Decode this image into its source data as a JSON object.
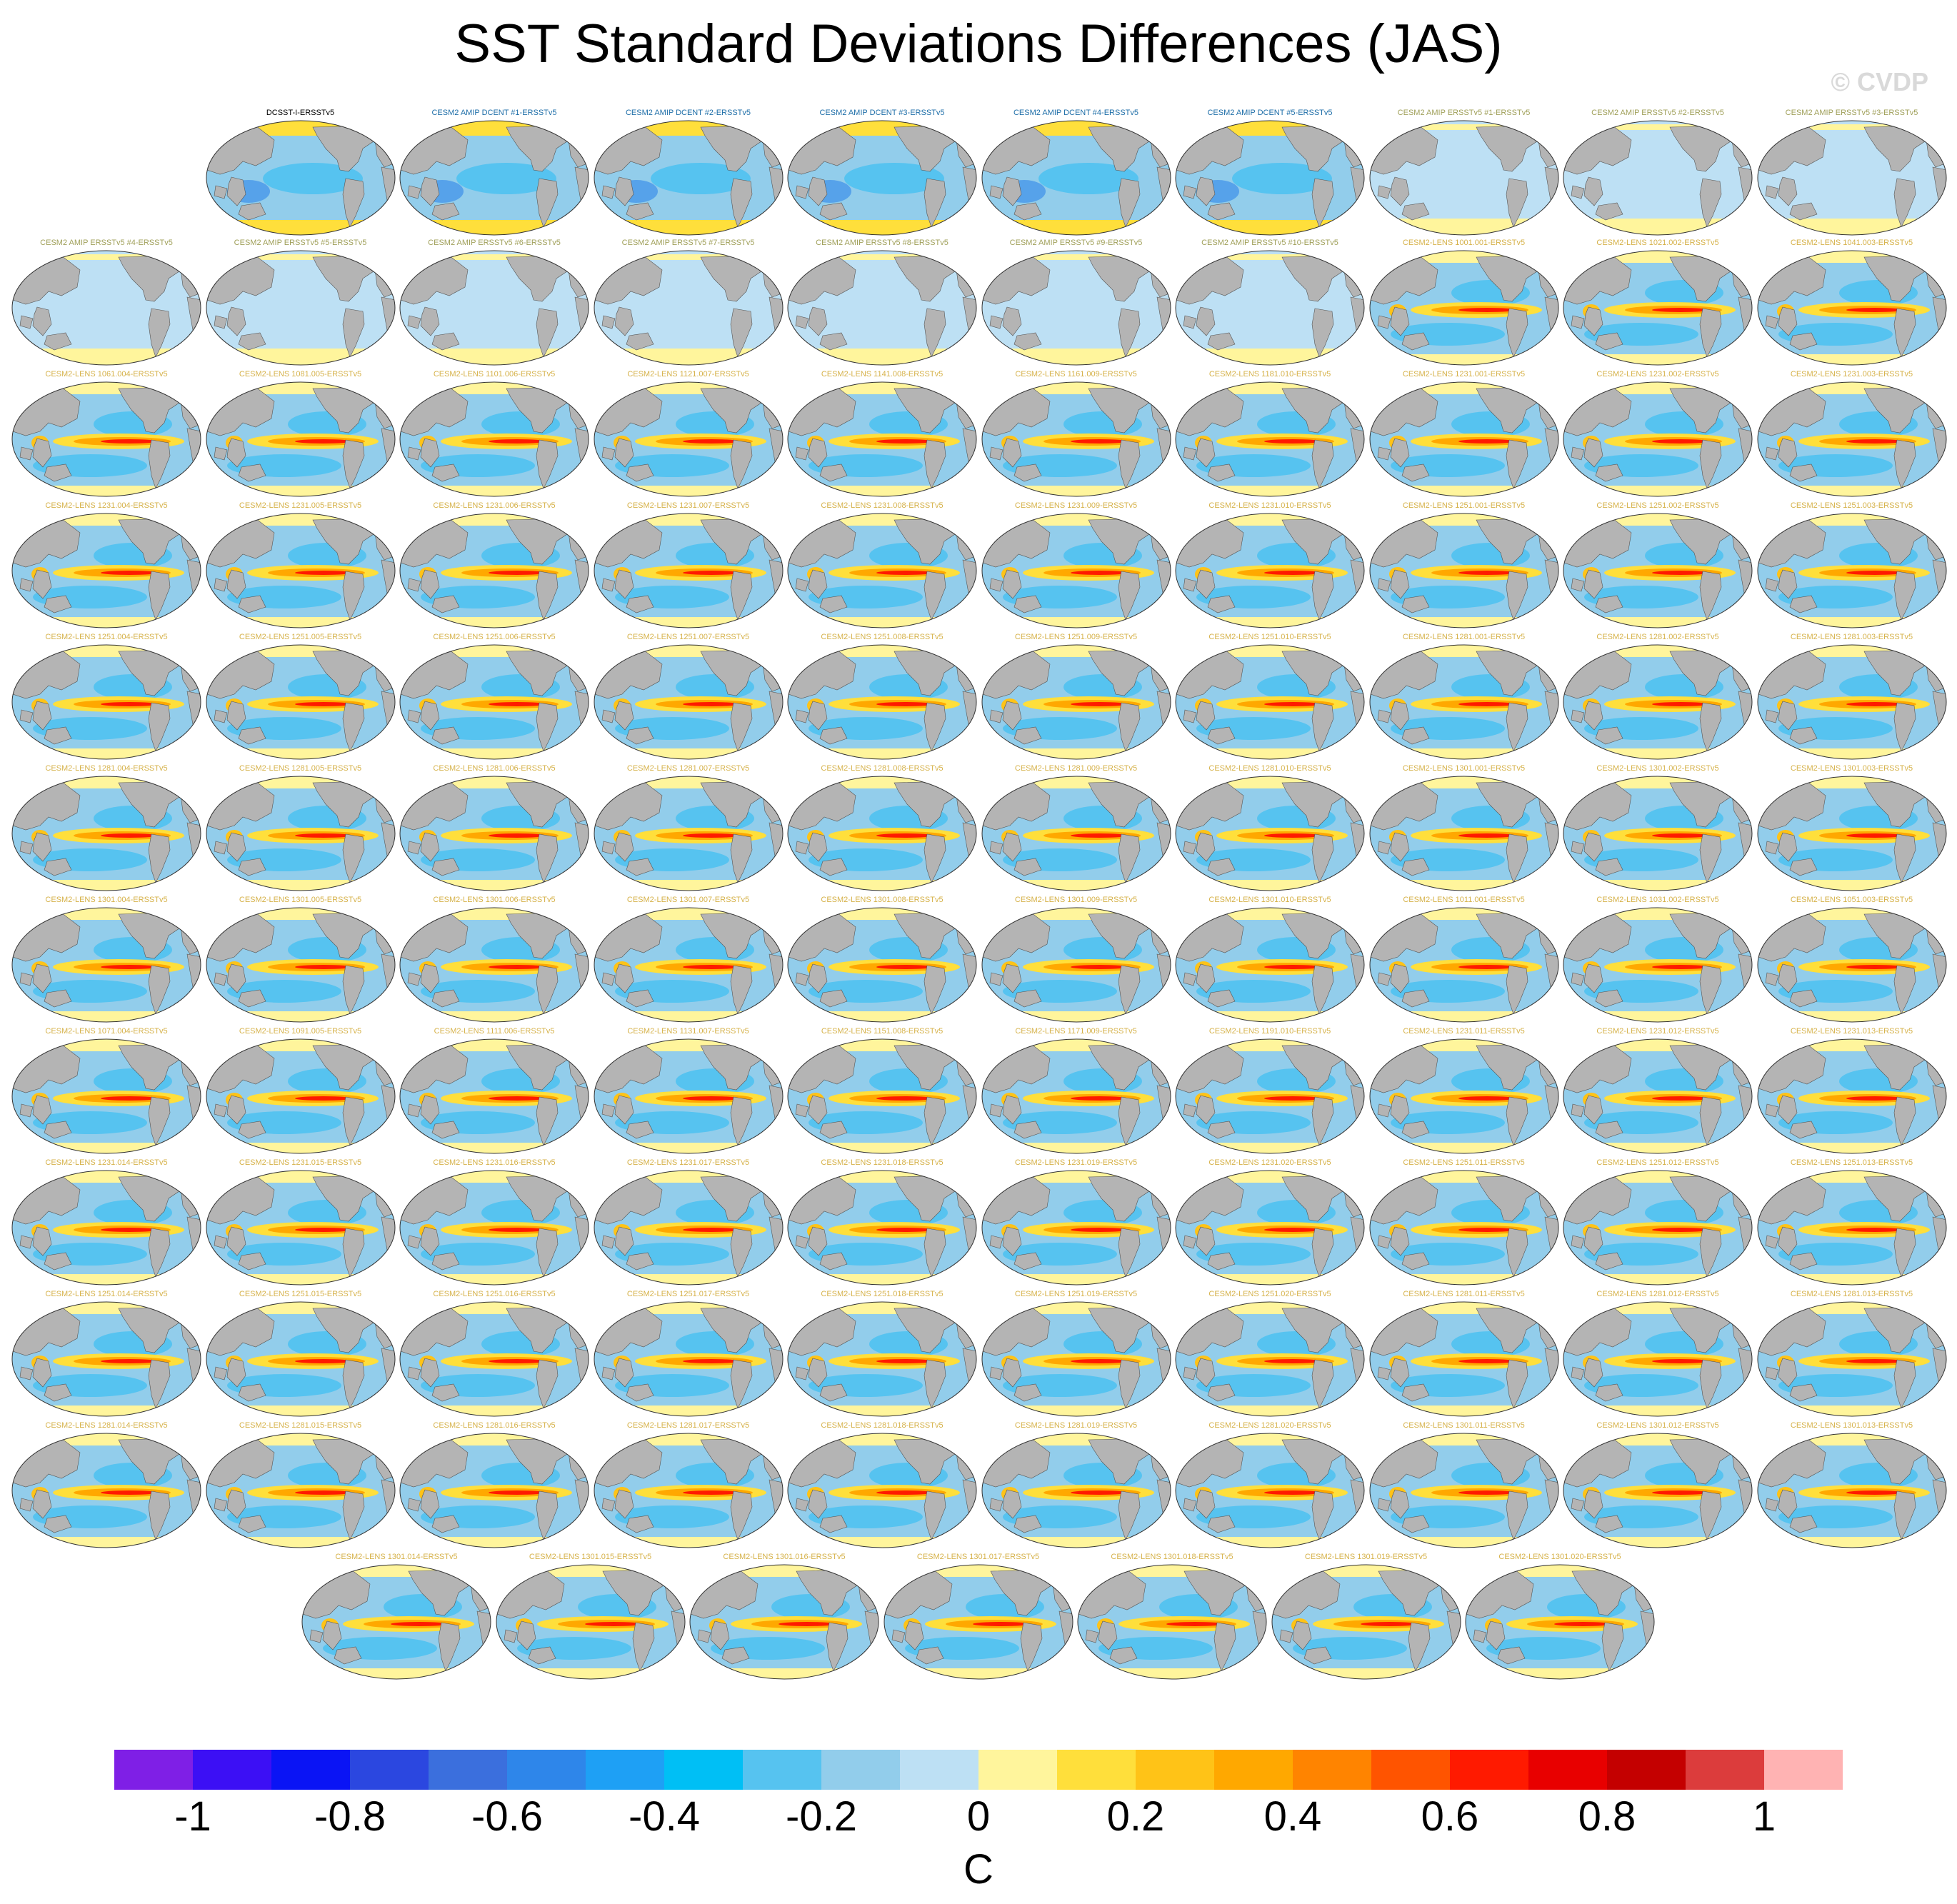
{
  "title": "SST Standard Deviations Differences (JAS)",
  "watermark": "© CVDP",
  "colors": {
    "land": "#b4b4b4",
    "title_black": "#000000",
    "title_blue": "#1e6ea8",
    "title_olive": "#a0a05a",
    "title_gold": "#d6b24a"
  },
  "panels": [
    {
      "label": "DCSST-I-ERSSTv5",
      "style": "dcent"
    },
    {
      "label": "CESM2 AMIP DCENT #1-ERSSTv5",
      "style": "dcent"
    },
    {
      "label": "CESM2 AMIP DCENT #2-ERSSTv5",
      "style": "dcent"
    },
    {
      "label": "CESM2 AMIP DCENT #3-ERSSTv5",
      "style": "dcent"
    },
    {
      "label": "CESM2 AMIP DCENT #4-ERSSTv5",
      "style": "dcent"
    },
    {
      "label": "CESM2 AMIP DCENT #5-ERSSTv5",
      "style": "dcent"
    },
    {
      "label": "CESM2 AMIP ERSSTv5 #1-ERSSTv5",
      "style": "amip"
    },
    {
      "label": "CESM2 AMIP ERSSTv5 #2-ERSSTv5",
      "style": "amip"
    },
    {
      "label": "CESM2 AMIP ERSSTv5 #3-ERSSTv5",
      "style": "amip"
    },
    {
      "label": "CESM2 AMIP ERSSTv5 #4-ERSSTv5",
      "style": "amip"
    },
    {
      "label": "CESM2 AMIP ERSSTv5 #5-ERSSTv5",
      "style": "amip"
    },
    {
      "label": "CESM2 AMIP ERSSTv5 #6-ERSSTv5",
      "style": "amip"
    },
    {
      "label": "CESM2 AMIP ERSSTv5 #7-ERSSTv5",
      "style": "amip"
    },
    {
      "label": "CESM2 AMIP ERSSTv5 #8-ERSSTv5",
      "style": "amip"
    },
    {
      "label": "CESM2 AMIP ERSSTv5 #9-ERSSTv5",
      "style": "amip"
    },
    {
      "label": "CESM2 AMIP ERSSTv5 #10-ERSSTv5",
      "style": "amip"
    },
    {
      "label": "CESM2-LENS 1001.001-ERSSTv5",
      "style": "lens"
    },
    {
      "label": "CESM2-LENS 1021.002-ERSSTv5",
      "style": "lens"
    },
    {
      "label": "CESM2-LENS 1041.003-ERSSTv5",
      "style": "lens"
    },
    {
      "label": "CESM2-LENS 1061.004-ERSSTv5",
      "style": "lens"
    },
    {
      "label": "CESM2-LENS 1081.005-ERSSTv5",
      "style": "lens"
    },
    {
      "label": "CESM2-LENS 1101.006-ERSSTv5",
      "style": "lens"
    },
    {
      "label": "CESM2-LENS 1121.007-ERSSTv5",
      "style": "lens"
    },
    {
      "label": "CESM2-LENS 1141.008-ERSSTv5",
      "style": "lens"
    },
    {
      "label": "CESM2-LENS 1161.009-ERSSTv5",
      "style": "lens"
    },
    {
      "label": "CESM2-LENS 1181.010-ERSSTv5",
      "style": "lens"
    },
    {
      "label": "CESM2-LENS 1231.001-ERSSTv5",
      "style": "lens"
    },
    {
      "label": "CESM2-LENS 1231.002-ERSSTv5",
      "style": "lens"
    },
    {
      "label": "CESM2-LENS 1231.003-ERSSTv5",
      "style": "lens"
    },
    {
      "label": "CESM2-LENS 1231.004-ERSSTv5",
      "style": "lens"
    },
    {
      "label": "CESM2-LENS 1231.005-ERSSTv5",
      "style": "lens"
    },
    {
      "label": "CESM2-LENS 1231.006-ERSSTv5",
      "style": "lens"
    },
    {
      "label": "CESM2-LENS 1231.007-ERSSTv5",
      "style": "lens"
    },
    {
      "label": "CESM2-LENS 1231.008-ERSSTv5",
      "style": "lens"
    },
    {
      "label": "CESM2-LENS 1231.009-ERSSTv5",
      "style": "lens"
    },
    {
      "label": "CESM2-LENS 1231.010-ERSSTv5",
      "style": "lens"
    },
    {
      "label": "CESM2-LENS 1251.001-ERSSTv5",
      "style": "lens"
    },
    {
      "label": "CESM2-LENS 1251.002-ERSSTv5",
      "style": "lens"
    },
    {
      "label": "CESM2-LENS 1251.003-ERSSTv5",
      "style": "lens"
    },
    {
      "label": "CESM2-LENS 1251.004-ERSSTv5",
      "style": "lens"
    },
    {
      "label": "CESM2-LENS 1251.005-ERSSTv5",
      "style": "lens"
    },
    {
      "label": "CESM2-LENS 1251.006-ERSSTv5",
      "style": "lens"
    },
    {
      "label": "CESM2-LENS 1251.007-ERSSTv5",
      "style": "lens"
    },
    {
      "label": "CESM2-LENS 1251.008-ERSSTv5",
      "style": "lens"
    },
    {
      "label": "CESM2-LENS 1251.009-ERSSTv5",
      "style": "lens"
    },
    {
      "label": "CESM2-LENS 1251.010-ERSSTv5",
      "style": "lens"
    },
    {
      "label": "CESM2-LENS 1281.001-ERSSTv5",
      "style": "lens"
    },
    {
      "label": "CESM2-LENS 1281.002-ERSSTv5",
      "style": "lens"
    },
    {
      "label": "CESM2-LENS 1281.003-ERSSTv5",
      "style": "lens"
    },
    {
      "label": "CESM2-LENS 1281.004-ERSSTv5",
      "style": "lens"
    },
    {
      "label": "CESM2-LENS 1281.005-ERSSTv5",
      "style": "lens"
    },
    {
      "label": "CESM2-LENS 1281.006-ERSSTv5",
      "style": "lens"
    },
    {
      "label": "CESM2-LENS 1281.007-ERSSTv5",
      "style": "lens"
    },
    {
      "label": "CESM2-LENS 1281.008-ERSSTv5",
      "style": "lens"
    },
    {
      "label": "CESM2-LENS 1281.009-ERSSTv5",
      "style": "lens"
    },
    {
      "label": "CESM2-LENS 1281.010-ERSSTv5",
      "style": "lens"
    },
    {
      "label": "CESM2-LENS 1301.001-ERSSTv5",
      "style": "lens"
    },
    {
      "label": "CESM2-LENS 1301.002-ERSSTv5",
      "style": "lens"
    },
    {
      "label": "CESM2-LENS 1301.003-ERSSTv5",
      "style": "lens"
    },
    {
      "label": "CESM2-LENS 1301.004-ERSSTv5",
      "style": "lens"
    },
    {
      "label": "CESM2-LENS 1301.005-ERSSTv5",
      "style": "lens"
    },
    {
      "label": "CESM2-LENS 1301.006-ERSSTv5",
      "style": "lens"
    },
    {
      "label": "CESM2-LENS 1301.007-ERSSTv5",
      "style": "lens"
    },
    {
      "label": "CESM2-LENS 1301.008-ERSSTv5",
      "style": "lens"
    },
    {
      "label": "CESM2-LENS 1301.009-ERSSTv5",
      "style": "lens"
    },
    {
      "label": "CESM2-LENS 1301.010-ERSSTv5",
      "style": "lens"
    },
    {
      "label": "CESM2-LENS 1011.001-ERSSTv5",
      "style": "lens"
    },
    {
      "label": "CESM2-LENS 1031.002-ERSSTv5",
      "style": "lens"
    },
    {
      "label": "CESM2-LENS 1051.003-ERSSTv5",
      "style": "lens"
    },
    {
      "label": "CESM2-LENS 1071.004-ERSSTv5",
      "style": "lens"
    },
    {
      "label": "CESM2-LENS 1091.005-ERSSTv5",
      "style": "lens"
    },
    {
      "label": "CESM2-LENS 1111.006-ERSSTv5",
      "style": "lens"
    },
    {
      "label": "CESM2-LENS 1131.007-ERSSTv5",
      "style": "lens"
    },
    {
      "label": "CESM2-LENS 1151.008-ERSSTv5",
      "style": "lens"
    },
    {
      "label": "CESM2-LENS 1171.009-ERSSTv5",
      "style": "lens"
    },
    {
      "label": "CESM2-LENS 1191.010-ERSSTv5",
      "style": "lens"
    },
    {
      "label": "CESM2-LENS 1231.011-ERSSTv5",
      "style": "lens"
    },
    {
      "label": "CESM2-LENS 1231.012-ERSSTv5",
      "style": "lens"
    },
    {
      "label": "CESM2-LENS 1231.013-ERSSTv5",
      "style": "lens"
    },
    {
      "label": "CESM2-LENS 1231.014-ERSSTv5",
      "style": "lens"
    },
    {
      "label": "CESM2-LENS 1231.015-ERSSTv5",
      "style": "lens"
    },
    {
      "label": "CESM2-LENS 1231.016-ERSSTv5",
      "style": "lens"
    },
    {
      "label": "CESM2-LENS 1231.017-ERSSTv5",
      "style": "lens"
    },
    {
      "label": "CESM2-LENS 1231.018-ERSSTv5",
      "style": "lens"
    },
    {
      "label": "CESM2-LENS 1231.019-ERSSTv5",
      "style": "lens"
    },
    {
      "label": "CESM2-LENS 1231.020-ERSSTv5",
      "style": "lens"
    },
    {
      "label": "CESM2-LENS 1251.011-ERSSTv5",
      "style": "lens"
    },
    {
      "label": "CESM2-LENS 1251.012-ERSSTv5",
      "style": "lens"
    },
    {
      "label": "CESM2-LENS 1251.013-ERSSTv5",
      "style": "lens"
    },
    {
      "label": "CESM2-LENS 1251.014-ERSSTv5",
      "style": "lens"
    },
    {
      "label": "CESM2-LENS 1251.015-ERSSTv5",
      "style": "lens"
    },
    {
      "label": "CESM2-LENS 1251.016-ERSSTv5",
      "style": "lens"
    },
    {
      "label": "CESM2-LENS 1251.017-ERSSTv5",
      "style": "lens"
    },
    {
      "label": "CESM2-LENS 1251.018-ERSSTv5",
      "style": "lens"
    },
    {
      "label": "CESM2-LENS 1251.019-ERSSTv5",
      "style": "lens"
    },
    {
      "label": "CESM2-LENS 1251.020-ERSSTv5",
      "style": "lens"
    },
    {
      "label": "CESM2-LENS 1281.011-ERSSTv5",
      "style": "lens"
    },
    {
      "label": "CESM2-LENS 1281.012-ERSSTv5",
      "style": "lens"
    },
    {
      "label": "CESM2-LENS 1281.013-ERSSTv5",
      "style": "lens"
    },
    {
      "label": "CESM2-LENS 1281.014-ERSSTv5",
      "style": "lens"
    },
    {
      "label": "CESM2-LENS 1281.015-ERSSTv5",
      "style": "lens"
    },
    {
      "label": "CESM2-LENS 1281.016-ERSSTv5",
      "style": "lens"
    },
    {
      "label": "CESM2-LENS 1281.017-ERSSTv5",
      "style": "lens"
    },
    {
      "label": "CESM2-LENS 1281.018-ERSSTv5",
      "style": "lens"
    },
    {
      "label": "CESM2-LENS 1281.019-ERSSTv5",
      "style": "lens"
    },
    {
      "label": "CESM2-LENS 1281.020-ERSSTv5",
      "style": "lens"
    },
    {
      "label": "CESM2-LENS 1301.011-ERSSTv5",
      "style": "lens"
    },
    {
      "label": "CESM2-LENS 1301.012-ERSSTv5",
      "style": "lens"
    },
    {
      "label": "CESM2-LENS 1301.013-ERSSTv5",
      "style": "lens"
    },
    {
      "label": "CESM2-LENS 1301.014-ERSSTv5",
      "style": "lens"
    },
    {
      "label": "CESM2-LENS 1301.015-ERSSTv5",
      "style": "lens"
    },
    {
      "label": "CESM2-LENS 1301.016-ERSSTv5",
      "style": "lens"
    },
    {
      "label": "CESM2-LENS 1301.017-ERSSTv5",
      "style": "lens"
    },
    {
      "label": "CESM2-LENS 1301.018-ERSSTv5",
      "style": "lens"
    },
    {
      "label": "CESM2-LENS 1301.019-ERSSTv5",
      "style": "lens"
    },
    {
      "label": "CESM2-LENS 1301.020-ERSSTv5",
      "style": "lens"
    }
  ],
  "colorbar": {
    "colors": [
      "#7f1fe6",
      "#3c0ff5",
      "#0a14f5",
      "#2b47e0",
      "#3b6fdd",
      "#2e86ea",
      "#1ea0f5",
      "#00bff5",
      "#56c3f0",
      "#92cdeb",
      "#bde0f4",
      "#fff59c",
      "#ffdf3b",
      "#ffc317",
      "#ffa800",
      "#ff8400",
      "#ff5400",
      "#ff1a00",
      "#e80000",
      "#c40000",
      "#dc3c3c",
      "#ffb3b3"
    ],
    "tick_labels": [
      "-1",
      "-0.8",
      "-0.6",
      "-0.4",
      "-0.2",
      "0",
      "0.2",
      "0.4",
      "0.6",
      "0.8",
      "1"
    ],
    "units": "C"
  }
}
